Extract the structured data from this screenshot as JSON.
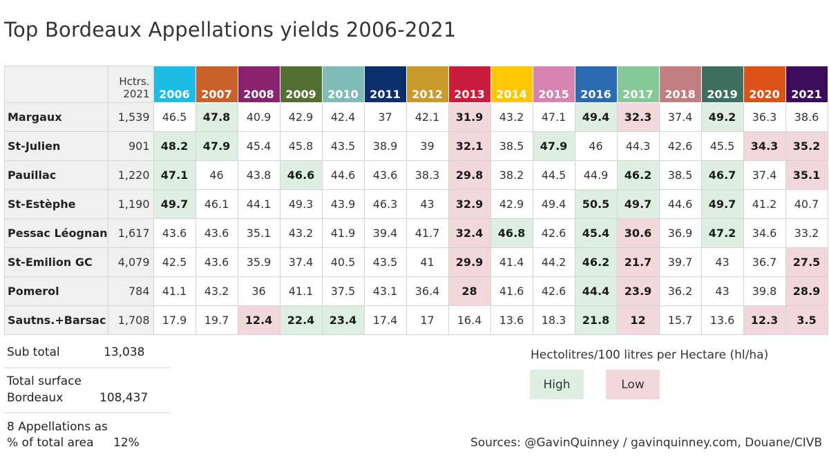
{
  "title": "Top Bordeaux Appellations yields 2006-2021",
  "chart_data": {
    "type": "table",
    "hectares_header": [
      "Hctrs.",
      "2021"
    ],
    "years": [
      "2006",
      "2007",
      "2008",
      "2009",
      "2010",
      "2011",
      "2012",
      "2013",
      "2014",
      "2015",
      "2016",
      "2017",
      "2018",
      "2019",
      "2020",
      "2021"
    ],
    "year_colors": [
      "#1bbde6",
      "#c8612a",
      "#8b2270",
      "#536f31",
      "#7fbcb8",
      "#0c2e6d",
      "#c99a2c",
      "#c81d3d",
      "#fbc706",
      "#d783b1",
      "#2b6cb1",
      "#84c997",
      "#c17f7f",
      "#3f6f61",
      "#dc5319",
      "#3d0c5c"
    ],
    "rows": [
      {
        "name": "Margaux",
        "hectares": "1,539",
        "values": [
          "46.5",
          "47.8",
          "40.9",
          "42.9",
          "42.4",
          "37",
          "42.1",
          "31.9",
          "43.2",
          "47.1",
          "49.4",
          "32.3",
          "37.4",
          "49.2",
          "36.3",
          "38.6"
        ],
        "marks": [
          "",
          "high",
          "",
          "",
          "",
          "",
          "",
          "low",
          "",
          "",
          "high",
          "low",
          "",
          "high",
          "",
          ""
        ]
      },
      {
        "name": "St-Julien",
        "hectares": "901",
        "values": [
          "48.2",
          "47.9",
          "45.4",
          "45.8",
          "43.5",
          "38.9",
          "39",
          "32.1",
          "38.5",
          "47.9",
          "46",
          "44.3",
          "42.6",
          "45.5",
          "34.3",
          "35.2"
        ],
        "marks": [
          "high",
          "high",
          "",
          "",
          "",
          "",
          "",
          "low",
          "",
          "high",
          "",
          "",
          "",
          "",
          "low",
          "low"
        ]
      },
      {
        "name": "Pauillac",
        "hectares": "1,220",
        "values": [
          "47.1",
          "46",
          "43.8",
          "46.6",
          "44.6",
          "43.6",
          "38.3",
          "29.8",
          "38.2",
          "44.5",
          "44.9",
          "46.2",
          "38.5",
          "46.7",
          "37.4",
          "35.1"
        ],
        "marks": [
          "high",
          "",
          "",
          "high",
          "",
          "",
          "",
          "low",
          "",
          "",
          "",
          "high",
          "",
          "high",
          "",
          "low"
        ]
      },
      {
        "name": "St-Estèphe",
        "hectares": "1,190",
        "values": [
          "49.7",
          "46.1",
          "44.1",
          "49.3",
          "43.9",
          "46.3",
          "43",
          "32.9",
          "42.9",
          "49.4",
          "50.5",
          "49.7",
          "44.6",
          "49.7",
          "41.2",
          "40.7"
        ],
        "marks": [
          "high",
          "",
          "",
          "",
          "",
          "",
          "",
          "low",
          "",
          "",
          "high",
          "high",
          "",
          "high",
          "",
          ""
        ]
      },
      {
        "name": "Pessac Léognan",
        "hectares": "1,617",
        "values": [
          "43.6",
          "43.6",
          "35.1",
          "43.2",
          "41.9",
          "39.4",
          "41.7",
          "32.4",
          "46.8",
          "42.6",
          "45.4",
          "30.6",
          "36.9",
          "47.2",
          "34.6",
          "33.2"
        ],
        "marks": [
          "",
          "",
          "",
          "",
          "",
          "",
          "",
          "low",
          "high",
          "",
          "high",
          "low",
          "",
          "high",
          "",
          ""
        ]
      },
      {
        "name": "St-Emilion GC",
        "hectares": "4,079",
        "values": [
          "42.5",
          "43.6",
          "35.9",
          "37.4",
          "40.5",
          "43.5",
          "41",
          "29.9",
          "41.4",
          "44.2",
          "46.2",
          "21.7",
          "39.7",
          "43",
          "36.7",
          "27.5"
        ],
        "marks": [
          "",
          "",
          "",
          "",
          "",
          "",
          "",
          "low",
          "",
          "",
          "high",
          "low",
          "",
          "",
          "",
          "low"
        ]
      },
      {
        "name": "Pomerol",
        "hectares": "784",
        "values": [
          "41.1",
          "43.2",
          "36",
          "41.1",
          "37.5",
          "43.1",
          "36.4",
          "28",
          "41.6",
          "42.6",
          "44.4",
          "23.9",
          "36.2",
          "43",
          "39.8",
          "28.9"
        ],
        "marks": [
          "",
          "",
          "",
          "",
          "",
          "",
          "",
          "low",
          "",
          "",
          "high",
          "low",
          "",
          "",
          "",
          "low"
        ]
      },
      {
        "name": "Sautns.+Barsac",
        "hectares": "1,708",
        "values": [
          "17.9",
          "19.7",
          "12.4",
          "22.4",
          "23.4",
          "17.4",
          "17",
          "16.4",
          "13.6",
          "18.3",
          "21.8",
          "12",
          "15.7",
          "13.6",
          "12.3",
          "3.5"
        ],
        "marks": [
          "",
          "",
          "low",
          "high",
          "high",
          "",
          "",
          "",
          "",
          "",
          "high",
          "low",
          "",
          "",
          "low",
          "low"
        ]
      }
    ]
  },
  "summary": {
    "sub_total_label": "Sub total",
    "sub_total_value": "13,038",
    "total_surface_label_1": "Total surface",
    "total_surface_label_2": "Bordeaux",
    "total_surface_value": "108,437",
    "pct_label_1": "8 Appellations as",
    "pct_label_2": "% of total area",
    "pct_value": "12%"
  },
  "legend": {
    "title": "Hectolitres/100 litres per Hectare (hl/ha)",
    "high_label": "High",
    "low_label": "Low",
    "high_color": "#deefe2",
    "low_color": "#f2d8db"
  },
  "sources": "Sources: @GavinQuinney / gavinquinney.com, Douane/CIVB"
}
